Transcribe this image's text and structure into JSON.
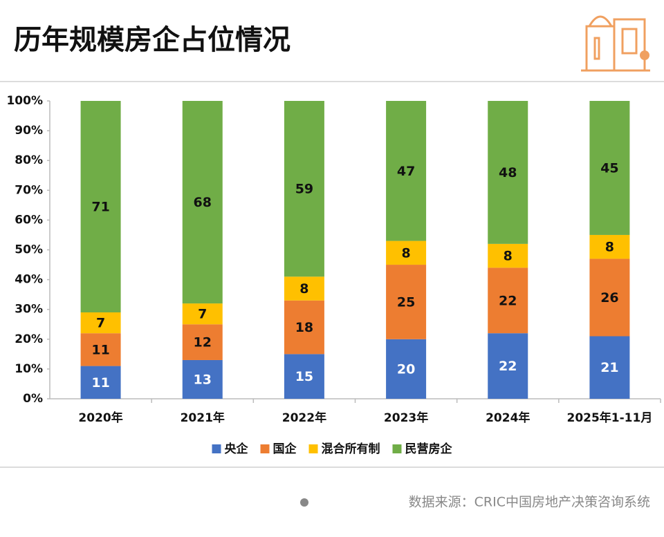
{
  "title": "历年规模房企占位情况",
  "source": "数据来源：CRIC中国房地产决策咨询系统",
  "chart_data": {
    "type": "stacked_bar",
    "categories": [
      "2020年",
      "2021年",
      "2022年",
      "2023年",
      "2024年",
      "2025年1-11月"
    ],
    "series": [
      {
        "name": "央企",
        "color": "#4472c4",
        "values": [
          11,
          13,
          15,
          20,
          22,
          21
        ]
      },
      {
        "name": "国企",
        "color": "#ed7d31",
        "values": [
          11,
          12,
          18,
          25,
          22,
          26
        ]
      },
      {
        "name": "混合所有制",
        "color": "#ffc000",
        "values": [
          7,
          7,
          8,
          8,
          8,
          8
        ]
      },
      {
        "name": "民营房企",
        "color": "#70ad47",
        "values": [
          71,
          68,
          59,
          47,
          48,
          45
        ]
      }
    ],
    "ylim": [
      0,
      100
    ],
    "yticks": [
      {
        "value": 0,
        "label": "0%"
      },
      {
        "value": 10,
        "label": "10%"
      },
      {
        "value": 20,
        "label": "20%"
      },
      {
        "value": 30,
        "label": "30%"
      },
      {
        "value": 40,
        "label": "40%"
      },
      {
        "value": 50,
        "label": "50%"
      },
      {
        "value": 60,
        "label": "60%"
      },
      {
        "value": 70,
        "label": "70%"
      },
      {
        "value": 80,
        "label": "80%"
      },
      {
        "value": 90,
        "label": "90%"
      },
      {
        "value": 100,
        "label": "100%"
      }
    ],
    "legend": "bottom"
  }
}
